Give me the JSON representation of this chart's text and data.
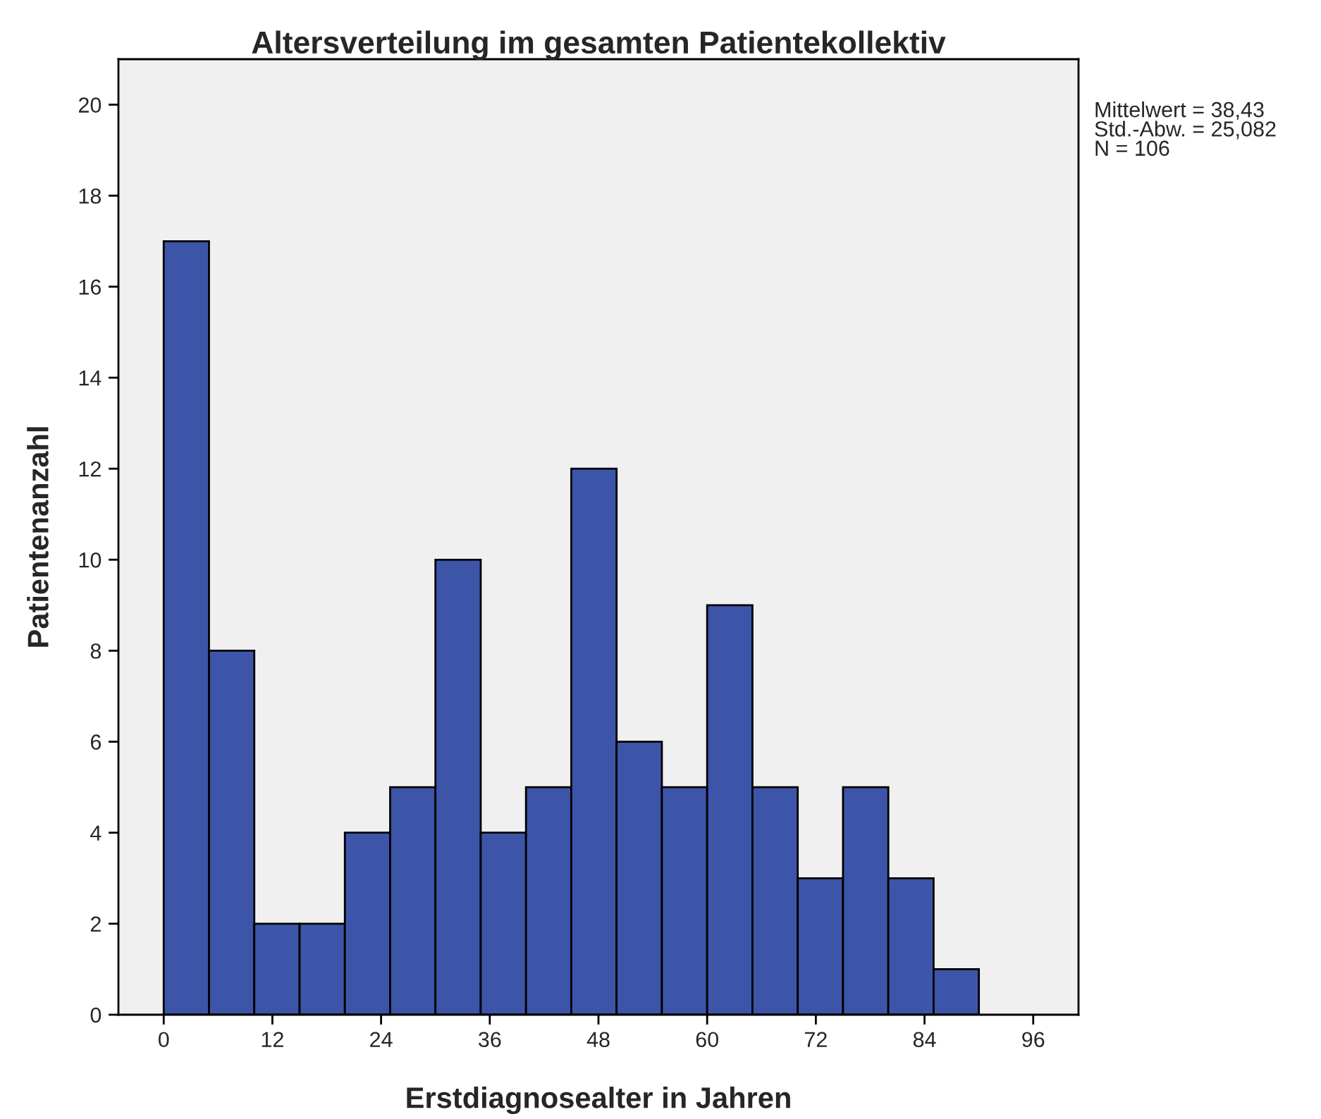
{
  "chart_data": {
    "type": "histogram",
    "title": "Altersverteilung im gesamten Patientekollektiv",
    "xlabel": "Erstdiagnosealter in Jahren",
    "ylabel": "Patientenanzahl",
    "bins": [
      0,
      5,
      10,
      15,
      20,
      25,
      30,
      35,
      40,
      45,
      50,
      55,
      60,
      65,
      70,
      75,
      80,
      85,
      90
    ],
    "values": [
      17,
      8,
      2,
      2,
      4,
      5,
      10,
      4,
      5,
      12,
      6,
      5,
      9,
      5,
      3,
      5,
      3,
      1
    ],
    "color": "#3d55a9",
    "xlim": [
      -5,
      101
    ],
    "xticks": [
      0,
      12,
      24,
      36,
      48,
      60,
      72,
      84,
      96
    ],
    "ylim": [
      0,
      21
    ],
    "yticks": [
      0,
      2,
      4,
      6,
      8,
      10,
      12,
      14,
      16,
      18,
      20
    ],
    "grid": false,
    "legend": false,
    "annotations": [
      "Mittelwert = 38,43\nStd.-Abw. = 25,082\nN = 106"
    ]
  }
}
